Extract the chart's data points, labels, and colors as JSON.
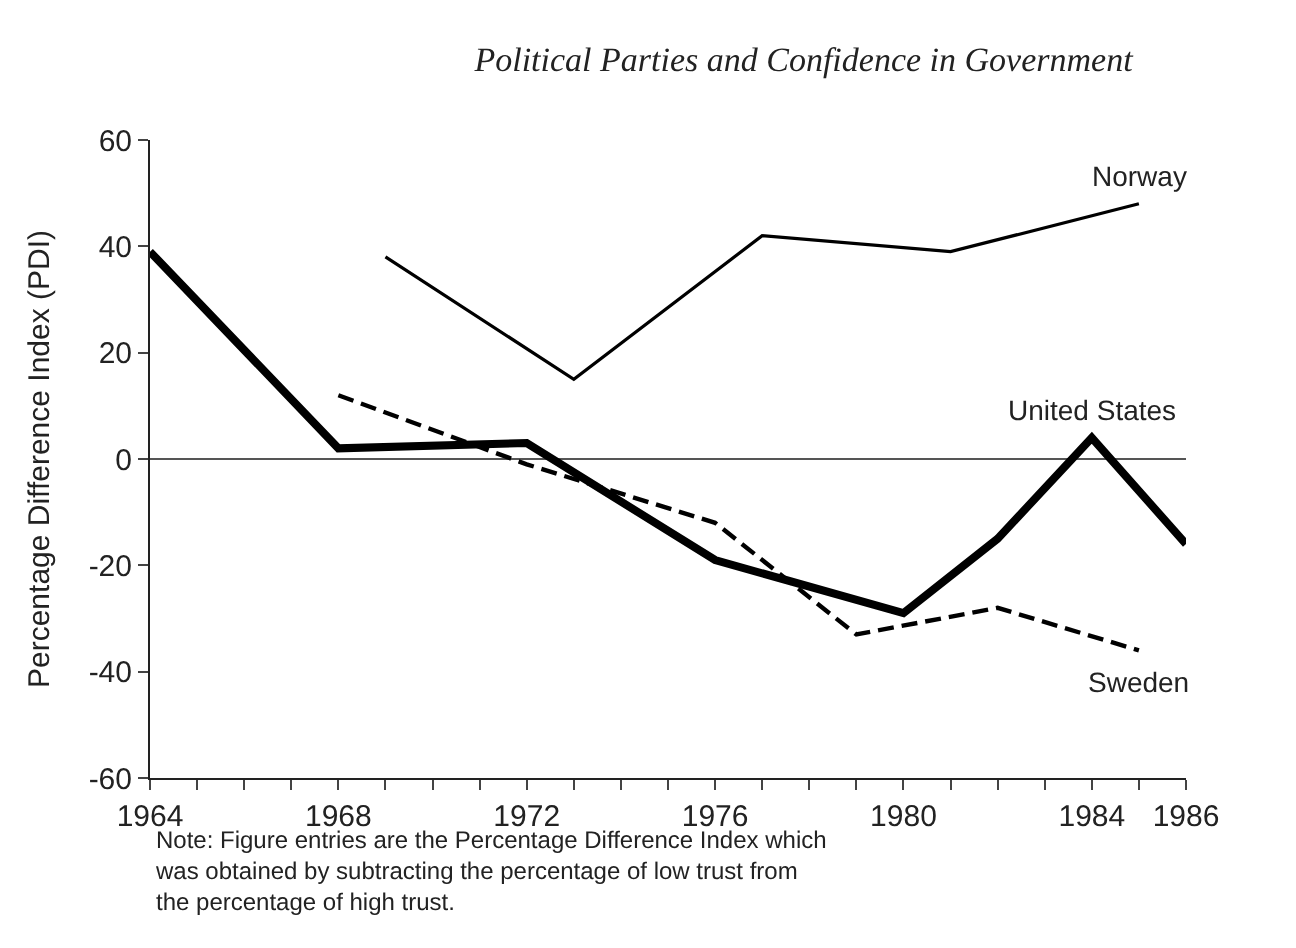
{
  "chart_data": {
    "type": "line",
    "title": "Political Parties and Confidence in Government",
    "ylabel": "Percentage Difference Index (PDI)",
    "xlim": [
      1964,
      1986
    ],
    "xticks": [
      1964,
      {
        "value": 1965,
        "label": null
      },
      {
        "value": 1966,
        "label": null
      },
      {
        "value": 1967,
        "label": null
      },
      1968,
      {
        "value": 1969,
        "label": null
      },
      {
        "value": 1970,
        "label": null
      },
      {
        "value": 1971,
        "label": null
      },
      1972,
      {
        "value": 1973,
        "label": null
      },
      {
        "value": 1974,
        "label": null
      },
      {
        "value": 1975,
        "label": null
      },
      1976,
      {
        "value": 1977,
        "label": null
      },
      {
        "value": 1978,
        "label": null
      },
      {
        "value": 1979,
        "label": null
      },
      1980,
      {
        "value": 1981,
        "label": null
      },
      {
        "value": 1982,
        "label": null
      },
      {
        "value": 1983,
        "label": null
      },
      1984,
      {
        "value": 1985,
        "label": null
      },
      1986
    ],
    "ylim": [
      -60,
      60
    ],
    "yticks": [
      -60,
      -40,
      -20,
      0,
      20,
      40,
      60
    ],
    "series": [
      {
        "name": "Norway",
        "color": "#000000",
        "line_style": "solid",
        "x": [
          1969,
          1973,
          1977,
          1981,
          1985
        ],
        "values": [
          38,
          15,
          42,
          39,
          48
        ]
      },
      {
        "name": "United States",
        "color": "#000000",
        "line_style": "solid",
        "x": [
          1964,
          1968,
          1972,
          1976,
          1980,
          1982,
          1984,
          1986
        ],
        "values": [
          39,
          2,
          3,
          -19,
          -29,
          -15,
          4,
          -16
        ]
      },
      {
        "name": "Sweden",
        "color": "#000000",
        "line_style": "dashed",
        "x": [
          1968,
          1972,
          1976,
          1979,
          1982,
          1985
        ],
        "values": [
          12,
          -1,
          -12,
          -33,
          -28,
          -36
        ]
      }
    ],
    "ref_lines": [
      {
        "axis": "y",
        "value": 0,
        "label": null,
        "color": "#555555"
      }
    ],
    "annotations": [
      "Note: Figure entries are the Percentage Difference Index which was obtained by subtracting the percentage of low trust from the percentage of high trust."
    ],
    "legend": false,
    "grid": false,
    "marker": "none"
  }
}
